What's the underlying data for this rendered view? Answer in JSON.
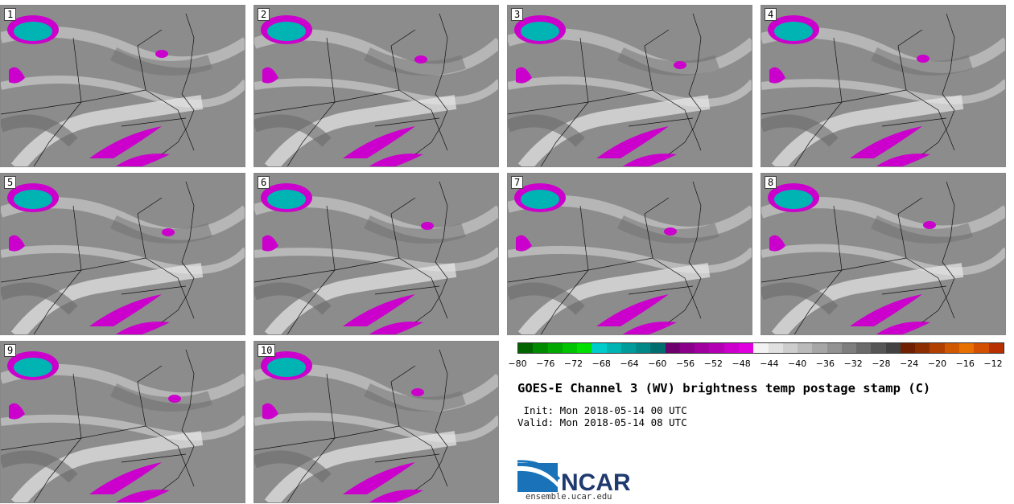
{
  "panels": [
    {
      "label": "1"
    },
    {
      "label": "2"
    },
    {
      "label": "3"
    },
    {
      "label": "4"
    },
    {
      "label": "5"
    },
    {
      "label": "6"
    },
    {
      "label": "7"
    },
    {
      "label": "8"
    },
    {
      "label": "9"
    },
    {
      "label": "10"
    }
  ],
  "colorbar": {
    "colors": [
      "#006400",
      "#008a00",
      "#00a800",
      "#00c400",
      "#00e000",
      "#00cccc",
      "#00b4b4",
      "#009c9c",
      "#008888",
      "#006e6e",
      "#6e006e",
      "#8a008a",
      "#a000a0",
      "#b400b4",
      "#cc00cc",
      "#e000e0",
      "#f2f2f2",
      "#e0e0e0",
      "#cdcdcd",
      "#bababa",
      "#a6a6a6",
      "#929292",
      "#7e7e7e",
      "#6a6a6a",
      "#565656",
      "#424242",
      "#702000",
      "#8c2e00",
      "#b04000",
      "#d05800",
      "#e87000",
      "#d25000",
      "#b83000"
    ],
    "tick_labels": [
      "−80",
      "−76",
      "−72",
      "−68",
      "−64",
      "−60",
      "−56",
      "−52",
      "−48",
      "−44",
      "−40",
      "−36",
      "−32",
      "−28",
      "−24",
      "−20",
      "−16",
      "−12"
    ]
  },
  "title": "GOES-E Channel 3 (WV) brightness temp postage stamp (C)",
  "init": " Init: Mon 2018-05-14 00 UTC",
  "valid": "Valid: Mon 2018-05-14 08 UTC",
  "logo_text": "NCAR",
  "url": "ensemble.ucar.edu"
}
